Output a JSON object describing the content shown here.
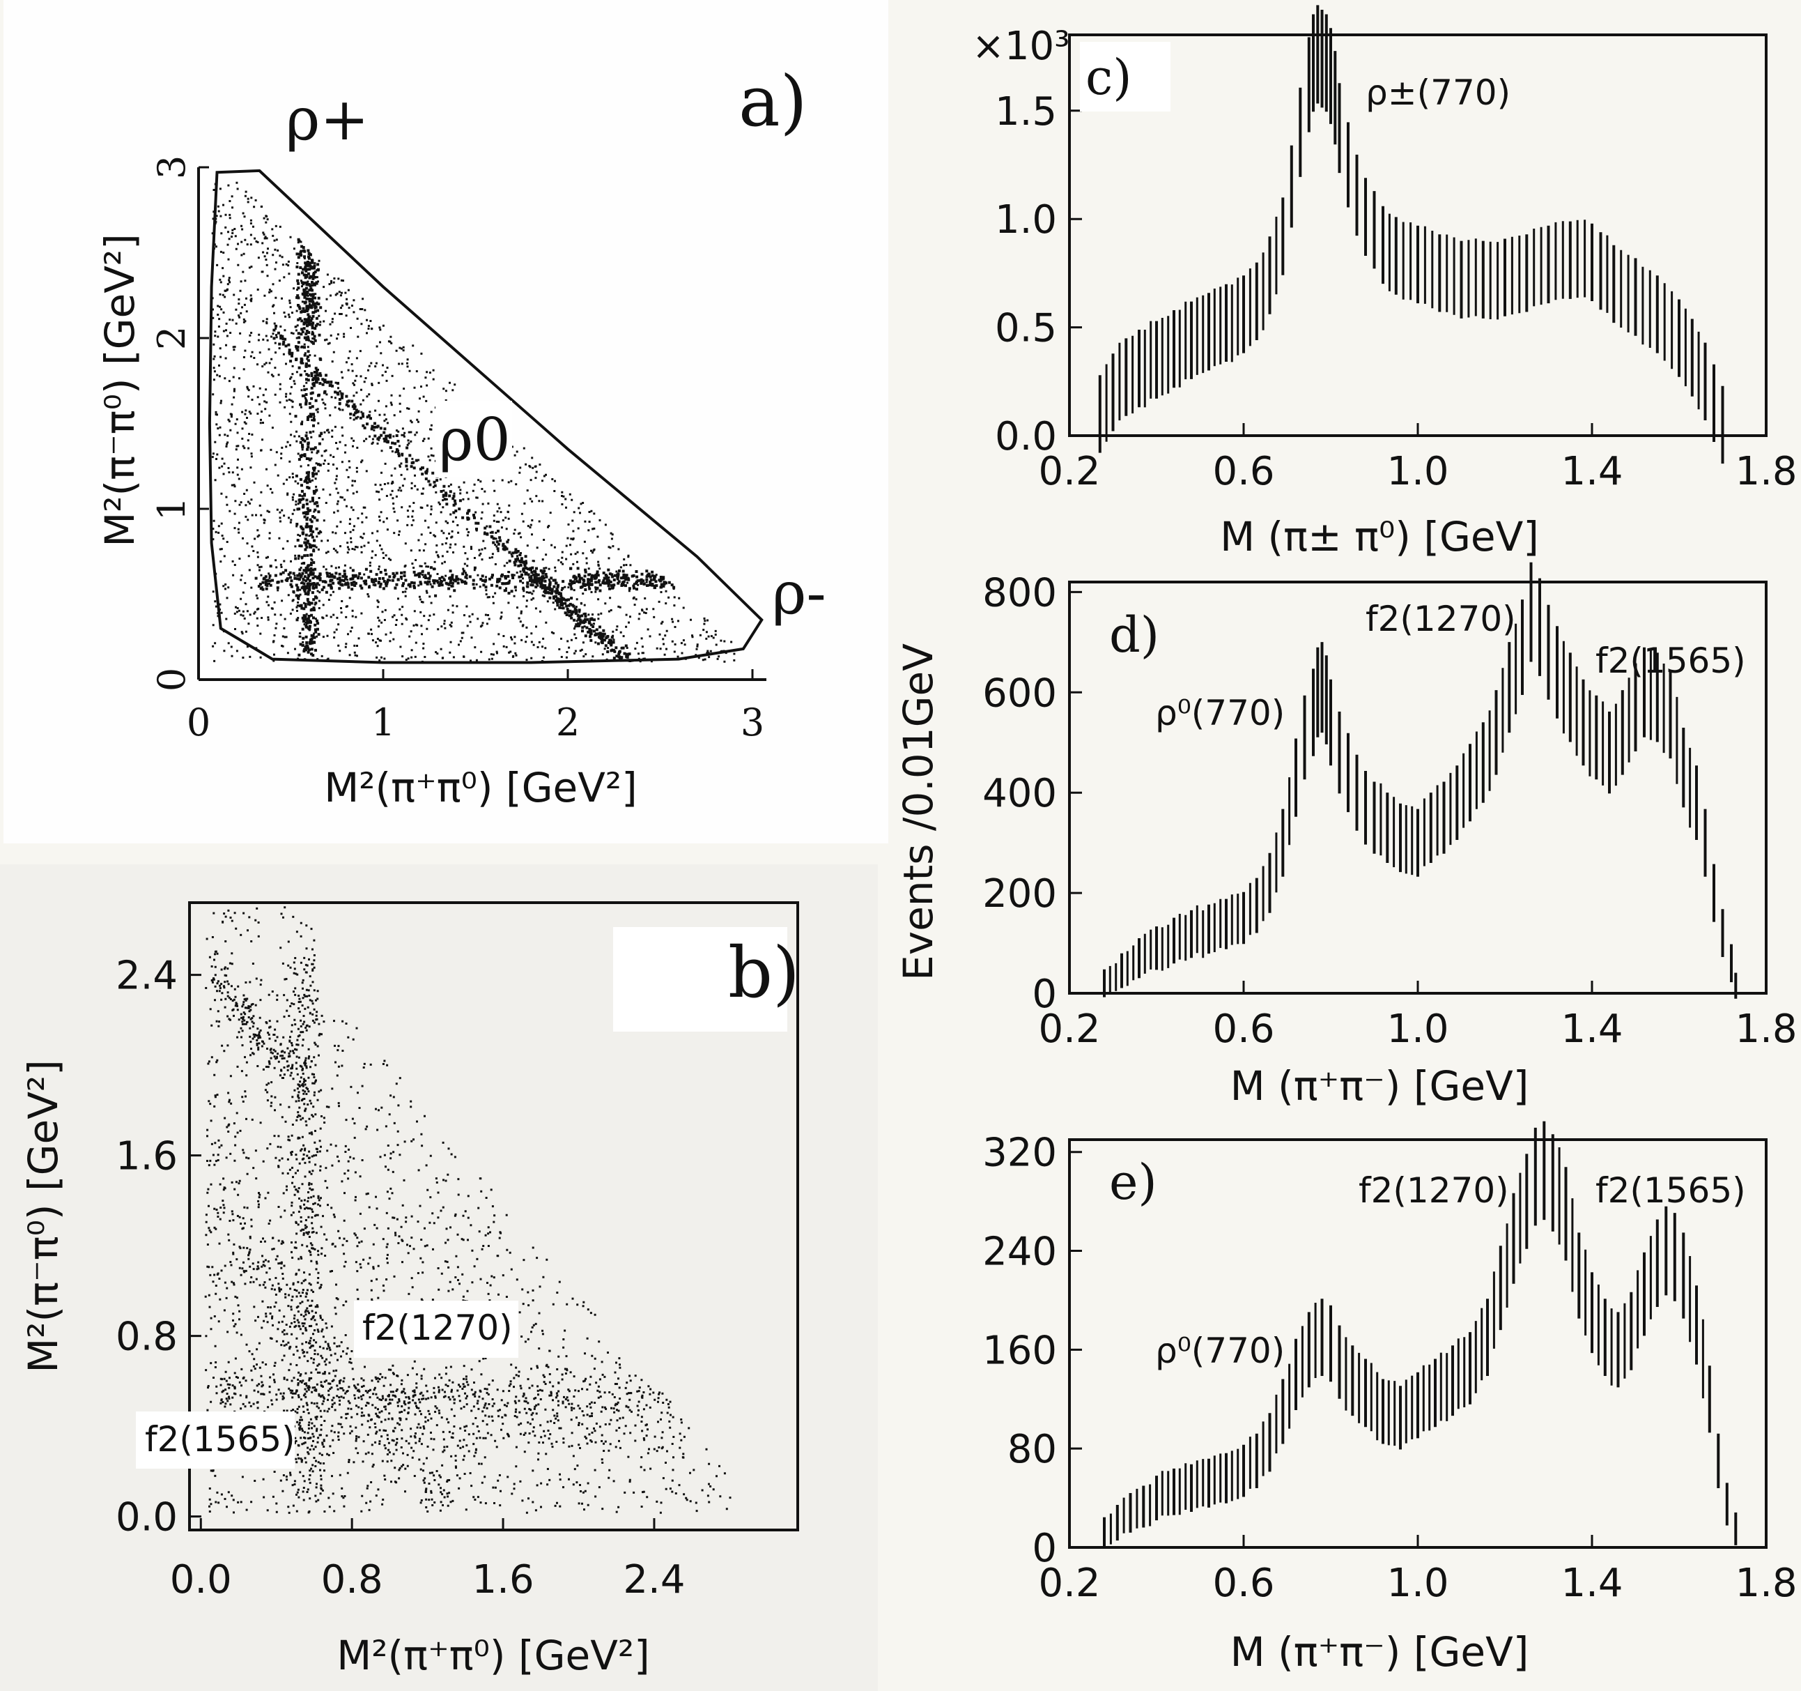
{
  "chart_data": [
    {
      "id": "a",
      "type": "scatter",
      "panel_label": "a)",
      "xlabel": "M²(π⁺π⁰) [GeV²]",
      "ylabel": "M²(π⁻π⁰) [GeV²]",
      "xticks": [
        "0",
        "1",
        "2",
        "3"
      ],
      "yticks": [
        "0",
        "1",
        "2",
        "3"
      ],
      "xlim": [
        0,
        3
      ],
      "ylim": [
        0,
        3
      ],
      "annotations": [
        {
          "text": "ρ+",
          "x": 0.7,
          "y": 3.2
        },
        {
          "text": "ρ0",
          "x": 1.4,
          "y": 1.3
        },
        {
          "text": "ρ-",
          "x": 3.3,
          "y": 0.5
        }
      ],
      "boundary": [
        [
          0.1,
          2.97
        ],
        [
          0.33,
          2.98
        ],
        [
          1.0,
          2.3
        ],
        [
          2.0,
          1.35
        ],
        [
          2.7,
          0.72
        ],
        [
          3.05,
          0.35
        ],
        [
          2.95,
          0.18
        ],
        [
          2.6,
          0.12
        ],
        [
          1.8,
          0.1
        ],
        [
          1.0,
          0.1
        ],
        [
          0.4,
          0.12
        ],
        [
          0.12,
          0.3
        ],
        [
          0.07,
          0.8
        ],
        [
          0.06,
          1.5
        ],
        [
          0.07,
          2.3
        ],
        [
          0.1,
          2.97
        ]
      ],
      "bands": [
        {
          "name": "ρ+",
          "axis": "x",
          "center": 0.59
        },
        {
          "name": "ρ-",
          "axis": "y",
          "center": 0.59
        },
        {
          "name": "ρ0",
          "axis": "diag",
          "center": 0.59
        }
      ]
    },
    {
      "id": "b",
      "type": "scatter",
      "panel_label": "b)",
      "xlabel": "M²(π⁺π⁰) [GeV²]",
      "ylabel": "M²(π⁻π⁰) [GeV²]",
      "xticks": [
        "0.0",
        "0.8",
        "1.6",
        "2.4"
      ],
      "yticks": [
        "0.0",
        "0.8",
        "1.6",
        "2.4"
      ],
      "xlim": [
        -0.06,
        3.16
      ],
      "ylim": [
        -0.06,
        2.72
      ],
      "annotations": [
        {
          "text": "f2(1270)",
          "x": 1.2,
          "y": 0.95
        },
        {
          "text": "f2(1565)",
          "x": -0.05,
          "y": 0.48
        }
      ],
      "bands": [
        {
          "name": "f2(1270)",
          "axis": "diag",
          "center": 1.61
        },
        {
          "name": "f2(1565)",
          "axis": "diag",
          "center": 2.45
        }
      ]
    },
    {
      "id": "c",
      "type": "line",
      "panel_label": "c)",
      "scale_label": "×10³",
      "xlabel": "M (π± π⁰) [GeV]",
      "xticks": [
        "0.2",
        "0.6",
        "1.0",
        "1.4",
        "1.8"
      ],
      "yticks": [
        "0.0",
        "0.5",
        "1.0",
        "1.5"
      ],
      "xlim": [
        0.2,
        1.8
      ],
      "ylim": [
        0,
        1.85
      ],
      "annotations": [
        {
          "text": "ρ±(770)",
          "x": 0.86,
          "y": 1.6
        }
      ],
      "x": [
        0.27,
        0.3,
        0.33,
        0.36,
        0.4,
        0.44,
        0.48,
        0.52,
        0.56,
        0.6,
        0.63,
        0.66,
        0.69,
        0.71,
        0.73,
        0.75,
        0.76,
        0.77,
        0.78,
        0.79,
        0.8,
        0.81,
        0.82,
        0.84,
        0.86,
        0.88,
        0.9,
        0.92,
        0.95,
        1.0,
        1.05,
        1.1,
        1.15,
        1.2,
        1.25,
        1.3,
        1.35,
        1.4,
        1.42,
        1.45,
        1.5,
        1.55,
        1.6,
        1.63,
        1.66,
        1.68,
        1.7
      ],
      "y": [
        0.1,
        0.2,
        0.27,
        0.31,
        0.35,
        0.4,
        0.44,
        0.48,
        0.52,
        0.56,
        0.62,
        0.74,
        0.92,
        1.15,
        1.4,
        1.62,
        1.72,
        1.76,
        1.74,
        1.72,
        1.66,
        1.56,
        1.42,
        1.25,
        1.11,
        1.01,
        0.95,
        0.88,
        0.83,
        0.79,
        0.75,
        0.72,
        0.72,
        0.73,
        0.75,
        0.79,
        0.81,
        0.8,
        0.76,
        0.7,
        0.64,
        0.56,
        0.45,
        0.36,
        0.25,
        0.15,
        0.05
      ]
    },
    {
      "id": "d",
      "type": "line",
      "panel_label": "d)",
      "xlabel": "M (π⁺π⁻) [GeV]",
      "ylabel": "Events /0.01GeV",
      "xticks": [
        "0.2",
        "0.6",
        "1.0",
        "1.4",
        "1.8"
      ],
      "yticks": [
        "0",
        "200",
        "400",
        "600",
        "800"
      ],
      "xlim": [
        0.2,
        1.8
      ],
      "ylim": [
        0,
        820
      ],
      "annotations": [
        {
          "text": "ρ⁰(770)",
          "x": 0.59,
          "y": 560
        },
        {
          "text": "f2(1270)",
          "x": 1.03,
          "y": 760
        },
        {
          "text": "f2(1565)",
          "x": 1.45,
          "y": 660
        }
      ],
      "x": [
        0.28,
        0.32,
        0.36,
        0.4,
        0.44,
        0.48,
        0.52,
        0.56,
        0.6,
        0.63,
        0.66,
        0.69,
        0.72,
        0.74,
        0.76,
        0.77,
        0.78,
        0.79,
        0.8,
        0.82,
        0.84,
        0.86,
        0.88,
        0.9,
        0.93,
        0.96,
        1.0,
        1.03,
        1.06,
        1.09,
        1.12,
        1.15,
        1.18,
        1.21,
        1.24,
        1.26,
        1.28,
        1.3,
        1.32,
        1.35,
        1.38,
        1.41,
        1.44,
        1.47,
        1.5,
        1.52,
        1.55,
        1.58,
        1.61,
        1.64,
        1.66,
        1.68,
        1.7,
        1.72,
        1.73
      ],
      "y": [
        20,
        45,
        70,
        90,
        105,
        118,
        128,
        138,
        150,
        175,
        220,
        300,
        430,
        510,
        560,
        600,
        610,
        585,
        540,
        480,
        440,
        400,
        370,
        350,
        330,
        310,
        300,
        330,
        350,
        380,
        420,
        460,
        520,
        610,
        690,
        760,
        730,
        680,
        640,
        590,
        540,
        510,
        480,
        520,
        570,
        600,
        590,
        555,
        450,
        380,
        300,
        200,
        120,
        60,
        15
      ]
    },
    {
      "id": "e",
      "type": "line",
      "panel_label": "e)",
      "xlabel": "M (π⁺π⁻) [GeV]",
      "xticks": [
        "0.2",
        "0.6",
        "1.0",
        "1.4",
        "1.8"
      ],
      "yticks": [
        "0",
        "80",
        "160",
        "240",
        "320"
      ],
      "xlim": [
        0.2,
        1.8
      ],
      "ylim": [
        0,
        330
      ],
      "annotations": [
        {
          "text": "ρ⁰(770)",
          "x": 0.62,
          "y": 160
        },
        {
          "text": "f2(1270)",
          "x": 1.01,
          "y": 290
        },
        {
          "text": "f2(1565)",
          "x": 1.43,
          "y": 290
        }
      ],
      "x": [
        0.28,
        0.31,
        0.34,
        0.37,
        0.4,
        0.44,
        0.48,
        0.52,
        0.56,
        0.6,
        0.63,
        0.66,
        0.69,
        0.72,
        0.75,
        0.78,
        0.8,
        0.82,
        0.85,
        0.88,
        0.92,
        0.96,
        1.0,
        1.04,
        1.08,
        1.12,
        1.16,
        1.19,
        1.22,
        1.25,
        1.27,
        1.29,
        1.31,
        1.34,
        1.37,
        1.4,
        1.43,
        1.46,
        1.49,
        1.52,
        1.55,
        1.57,
        1.59,
        1.61,
        1.64,
        1.67,
        1.69,
        1.71,
        1.73
      ],
      "y": [
        12,
        20,
        28,
        33,
        40,
        45,
        48,
        52,
        56,
        62,
        70,
        85,
        110,
        140,
        160,
        170,
        165,
        150,
        135,
        125,
        110,
        105,
        115,
        125,
        135,
        145,
        170,
        210,
        250,
        280,
        300,
        305,
        295,
        270,
        220,
        190,
        170,
        160,
        175,
        205,
        230,
        240,
        235,
        220,
        180,
        120,
        70,
        35,
        15
      ]
    }
  ]
}
